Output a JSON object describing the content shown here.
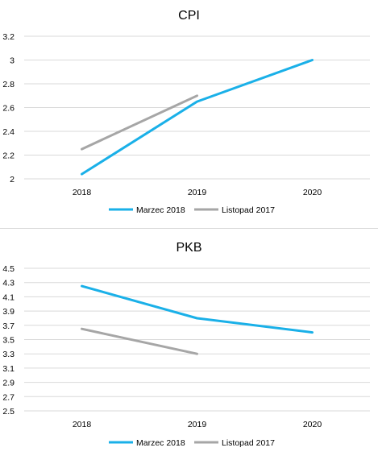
{
  "chart_data": [
    {
      "type": "line",
      "title": "CPI",
      "categories": [
        "2018",
        "2019",
        "2020"
      ],
      "yticks": [
        "2",
        "2.2",
        "2.4",
        "2.6",
        "2.8",
        "3",
        "3.2"
      ],
      "ylim": [
        2,
        3.2
      ],
      "grid": true,
      "legend_position": "bottom",
      "series": [
        {
          "name": "Marzec 2018",
          "color": "#1ab0e8",
          "values": [
            2.04,
            2.65,
            3.0
          ]
        },
        {
          "name": "Listopad 2017",
          "color": "#a6a6a6",
          "values": [
            2.25,
            2.7,
            null
          ]
        }
      ]
    },
    {
      "type": "line",
      "title": "PKB",
      "categories": [
        "2018",
        "2019",
        "2020"
      ],
      "yticks": [
        "2.5",
        "2.7",
        "2.9",
        "3.1",
        "3.3",
        "3.5",
        "3.7",
        "3.9",
        "4.1",
        "4.3",
        "4.5"
      ],
      "ylim": [
        2.5,
        4.5
      ],
      "grid": true,
      "legend_position": "bottom",
      "series": [
        {
          "name": "Marzec 2018",
          "color": "#1ab0e8",
          "values": [
            4.25,
            3.8,
            3.6
          ]
        },
        {
          "name": "Listopad 2017",
          "color": "#a6a6a6",
          "values": [
            3.65,
            3.3,
            null
          ]
        }
      ]
    }
  ]
}
